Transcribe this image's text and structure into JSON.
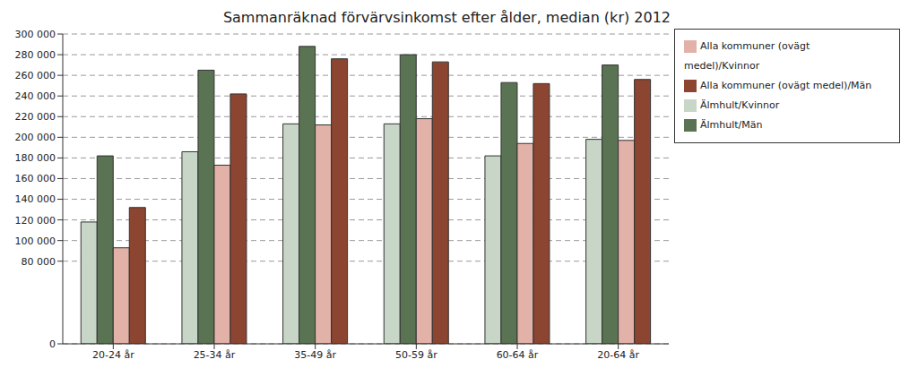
{
  "chart_data": {
    "type": "bar",
    "title": "Sammanräknad förvärvsinkomst efter ålder, median (kr) 2012",
    "categories": [
      "20-24 år",
      "25-34 år",
      "35-49 år",
      "50-59 år",
      "60-64 år",
      "20-64 år"
    ],
    "series": [
      {
        "name": "Älmhult/Kvinnor",
        "color": "#c8d6c8",
        "values": [
          118000,
          186000,
          213000,
          213000,
          182000,
          198000
        ]
      },
      {
        "name": "Älmhult/Män",
        "color": "#5a7352",
        "values": [
          182000,
          265000,
          288000,
          280000,
          253000,
          270000
        ]
      },
      {
        "name": "Alla kommuner (ovägt medel)/Kvinnor",
        "color": "#e2b1a8",
        "values": [
          93000,
          173000,
          212000,
          218000,
          194000,
          197000
        ]
      },
      {
        "name": "Alla kommuner (ovägt medel)/Män",
        "color": "#8b4530",
        "values": [
          132000,
          242000,
          276000,
          273000,
          252000,
          256000
        ]
      }
    ],
    "ylim": [
      0,
      300000
    ],
    "yticks": [
      0,
      {
        "value": 80000,
        "label": "80 000"
      },
      {
        "value": 100000,
        "label": "100 000"
      },
      {
        "value": 120000,
        "label": "120 000"
      },
      {
        "value": 140000,
        "label": "140 000"
      },
      {
        "value": 160000,
        "label": "160 000"
      },
      {
        "value": 180000,
        "label": "180 000"
      },
      {
        "value": 200000,
        "label": "200 000"
      },
      {
        "value": 220000,
        "label": "220 000"
      },
      {
        "value": 240000,
        "label": "240 000"
      },
      {
        "value": 260000,
        "label": "260 000"
      },
      {
        "value": 280000,
        "label": "280 000"
      },
      {
        "value": 300000,
        "label": "300 000"
      }
    ],
    "grid": true,
    "legend": "right"
  }
}
